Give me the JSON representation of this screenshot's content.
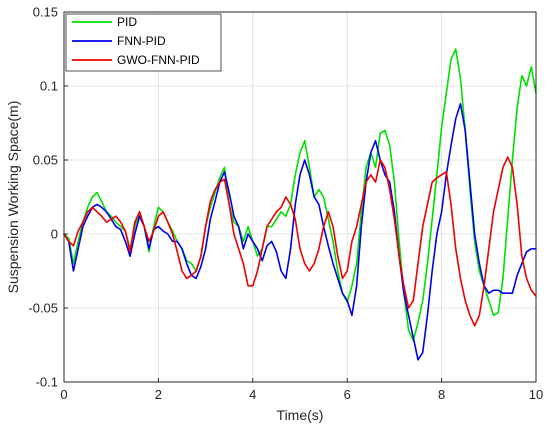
{
  "chart_data": {
    "type": "line",
    "title": "",
    "xlabel": "Time(s)",
    "ylabel": "Suspension Working Space(m)",
    "xlim": [
      0,
      10
    ],
    "ylim": [
      -0.1,
      0.15
    ],
    "xticks": [
      0,
      2,
      4,
      6,
      8,
      10
    ],
    "xtick_labels": [
      "0",
      "2",
      "4",
      "6",
      "8",
      "10"
    ],
    "yticks": [
      -0.1,
      -0.05,
      0,
      0.05,
      0.1,
      0.15
    ],
    "ytick_labels": [
      "-0.1",
      "-0.05",
      "0",
      "0.05",
      "0.1",
      "0.15"
    ],
    "grid": true,
    "legend_position": "top-left",
    "series": [
      {
        "name": "PID",
        "color": "#00e000",
        "x": [
          0,
          0.1,
          0.2,
          0.3,
          0.4,
          0.5,
          0.6,
          0.7,
          0.8,
          0.9,
          1.0,
          1.1,
          1.2,
          1.3,
          1.4,
          1.5,
          1.6,
          1.7,
          1.8,
          1.9,
          2.0,
          2.1,
          2.2,
          2.3,
          2.4,
          2.5,
          2.6,
          2.7,
          2.8,
          2.9,
          3.0,
          3.1,
          3.2,
          3.3,
          3.4,
          3.5,
          3.6,
          3.7,
          3.8,
          3.9,
          4.0,
          4.1,
          4.2,
          4.3,
          4.4,
          4.5,
          4.6,
          4.7,
          4.8,
          4.9,
          5.0,
          5.1,
          5.2,
          5.3,
          5.4,
          5.5,
          5.6,
          5.7,
          5.8,
          5.9,
          6.0,
          6.1,
          6.2,
          6.3,
          6.4,
          6.5,
          6.6,
          6.7,
          6.8,
          6.9,
          7.0,
          7.1,
          7.2,
          7.3,
          7.4,
          7.5,
          7.6,
          7.7,
          7.8,
          7.9,
          8.0,
          8.1,
          8.2,
          8.3,
          8.4,
          8.5,
          8.6,
          8.7,
          8.8,
          8.9,
          9.0,
          9.1,
          9.2,
          9.3,
          9.4,
          9.5,
          9.6,
          9.7,
          9.8,
          9.9,
          10.0
        ],
        "values": [
          0,
          -0.003,
          -0.02,
          -0.005,
          0.008,
          0.018,
          0.025,
          0.028,
          0.022,
          0.015,
          0.012,
          0.008,
          0.005,
          0.002,
          -0.01,
          0.005,
          0.015,
          0.005,
          -0.012,
          0.005,
          0.018,
          0.015,
          0.008,
          0.002,
          -0.005,
          -0.01,
          -0.018,
          -0.02,
          -0.025,
          -0.015,
          0.005,
          0.018,
          0.028,
          0.038,
          0.045,
          0.02,
          0.008,
          0.005,
          -0.005,
          0.005,
          -0.005,
          -0.015,
          -0.01,
          0.005,
          0.005,
          0.01,
          0.015,
          0.012,
          0.02,
          0.04,
          0.055,
          0.063,
          0.045,
          0.025,
          0.03,
          0.025,
          0.01,
          -0.005,
          -0.025,
          -0.04,
          -0.046,
          -0.035,
          -0.02,
          0.015,
          0.045,
          0.055,
          0.045,
          0.068,
          0.07,
          0.06,
          0.035,
          -0.005,
          -0.04,
          -0.065,
          -0.072,
          -0.06,
          -0.045,
          -0.02,
          0.01,
          0.04,
          0.072,
          0.095,
          0.118,
          0.125,
          0.105,
          0.07,
          0.03,
          -0.005,
          -0.025,
          -0.035,
          -0.045,
          -0.055,
          -0.053,
          -0.03,
          0.01,
          0.05,
          0.085,
          0.107,
          0.1,
          0.113,
          0.095
        ]
      },
      {
        "name": "FNN-PID",
        "color": "#0000ee",
        "x": [
          0,
          0.1,
          0.2,
          0.3,
          0.4,
          0.5,
          0.6,
          0.7,
          0.8,
          0.9,
          1.0,
          1.1,
          1.2,
          1.3,
          1.4,
          1.5,
          1.6,
          1.7,
          1.8,
          1.9,
          2.0,
          2.1,
          2.2,
          2.3,
          2.4,
          2.5,
          2.6,
          2.7,
          2.8,
          2.9,
          3.0,
          3.1,
          3.2,
          3.3,
          3.4,
          3.5,
          3.6,
          3.7,
          3.8,
          3.9,
          4.0,
          4.1,
          4.2,
          4.3,
          4.4,
          4.5,
          4.6,
          4.7,
          4.8,
          4.9,
          5.0,
          5.1,
          5.2,
          5.3,
          5.4,
          5.5,
          5.6,
          5.7,
          5.8,
          5.9,
          6.0,
          6.1,
          6.2,
          6.3,
          6.4,
          6.5,
          6.6,
          6.7,
          6.8,
          6.9,
          7.0,
          7.1,
          7.2,
          7.3,
          7.4,
          7.5,
          7.6,
          7.7,
          7.8,
          7.9,
          8.0,
          8.1,
          8.2,
          8.3,
          8.4,
          8.5,
          8.6,
          8.7,
          8.8,
          8.9,
          9.0,
          9.1,
          9.2,
          9.3,
          9.4,
          9.5,
          9.6,
          9.7,
          9.8,
          9.9,
          10.0
        ],
        "values": [
          0,
          -0.005,
          -0.025,
          -0.01,
          0.005,
          0.012,
          0.018,
          0.02,
          0.018,
          0.015,
          0.01,
          0.005,
          0.003,
          -0.005,
          -0.015,
          0.0,
          0.012,
          0.005,
          -0.01,
          0.003,
          0.005,
          0.002,
          0.0,
          -0.005,
          -0.005,
          -0.01,
          -0.02,
          -0.028,
          -0.03,
          -0.022,
          -0.01,
          0.01,
          0.022,
          0.035,
          0.042,
          0.028,
          0.012,
          0.005,
          -0.01,
          0.0,
          -0.005,
          -0.01,
          -0.018,
          -0.008,
          -0.005,
          -0.012,
          -0.025,
          -0.03,
          -0.01,
          0.02,
          0.04,
          0.05,
          0.04,
          0.025,
          0.02,
          0.005,
          -0.008,
          -0.02,
          -0.03,
          -0.04,
          -0.045,
          -0.055,
          -0.035,
          0.005,
          0.035,
          0.055,
          0.063,
          0.05,
          0.04,
          0.035,
          0.015,
          -0.015,
          -0.04,
          -0.055,
          -0.07,
          -0.085,
          -0.08,
          -0.055,
          -0.025,
          0.0,
          0.015,
          0.04,
          0.06,
          0.078,
          0.088,
          0.07,
          0.035,
          0.0,
          -0.02,
          -0.035,
          -0.04,
          -0.038,
          -0.038,
          -0.04,
          -0.04,
          -0.04,
          -0.028,
          -0.02,
          -0.012,
          -0.01,
          -0.01
        ]
      },
      {
        "name": "GWO-FNN-PID",
        "color": "#ee0000",
        "x": [
          0,
          0.1,
          0.2,
          0.3,
          0.4,
          0.5,
          0.6,
          0.7,
          0.8,
          0.9,
          1.0,
          1.1,
          1.2,
          1.3,
          1.4,
          1.5,
          1.6,
          1.7,
          1.8,
          1.9,
          2.0,
          2.1,
          2.2,
          2.3,
          2.4,
          2.5,
          2.6,
          2.7,
          2.8,
          2.9,
          3.0,
          3.1,
          3.2,
          3.3,
          3.4,
          3.5,
          3.6,
          3.7,
          3.8,
          3.9,
          4.0,
          4.1,
          4.2,
          4.3,
          4.4,
          4.5,
          4.6,
          4.7,
          4.8,
          4.9,
          5.0,
          5.1,
          5.2,
          5.3,
          5.4,
          5.5,
          5.6,
          5.7,
          5.8,
          5.9,
          6.0,
          6.1,
          6.2,
          6.3,
          6.4,
          6.5,
          6.6,
          6.7,
          6.8,
          6.9,
          7.0,
          7.1,
          7.2,
          7.3,
          7.4,
          7.5,
          7.6,
          7.7,
          7.8,
          7.9,
          8.0,
          8.1,
          8.2,
          8.3,
          8.4,
          8.5,
          8.6,
          8.7,
          8.8,
          8.9,
          9.0,
          9.1,
          9.2,
          9.3,
          9.4,
          9.5,
          9.6,
          9.7,
          9.8,
          9.9,
          10.0
        ],
        "values": [
          0,
          -0.005,
          -0.008,
          0.002,
          0.008,
          0.015,
          0.018,
          0.015,
          0.012,
          0.008,
          0.01,
          0.012,
          0.008,
          0.002,
          -0.012,
          0.008,
          0.015,
          0.005,
          -0.005,
          0.002,
          0.012,
          0.015,
          0.008,
          0.0,
          -0.012,
          -0.025,
          -0.03,
          -0.028,
          -0.025,
          -0.015,
          0.005,
          0.022,
          0.03,
          0.035,
          0.037,
          0.02,
          0.0,
          -0.01,
          -0.02,
          -0.035,
          -0.035,
          -0.025,
          -0.01,
          0.005,
          0.01,
          0.015,
          0.018,
          0.025,
          0.02,
          0.01,
          -0.01,
          -0.02,
          -0.025,
          -0.02,
          -0.01,
          0.005,
          0.015,
          0.005,
          -0.015,
          -0.03,
          -0.025,
          -0.005,
          0.005,
          0.02,
          0.035,
          0.04,
          0.035,
          0.05,
          0.045,
          0.03,
          0.01,
          -0.015,
          -0.035,
          -0.05,
          -0.045,
          -0.02,
          0.005,
          0.02,
          0.035,
          0.038,
          0.04,
          0.042,
          0.02,
          -0.01,
          -0.03,
          -0.045,
          -0.055,
          -0.062,
          -0.055,
          -0.035,
          -0.01,
          0.015,
          0.03,
          0.045,
          0.052,
          0.045,
          0.02,
          -0.015,
          -0.03,
          -0.038,
          -0.042
        ]
      }
    ]
  }
}
